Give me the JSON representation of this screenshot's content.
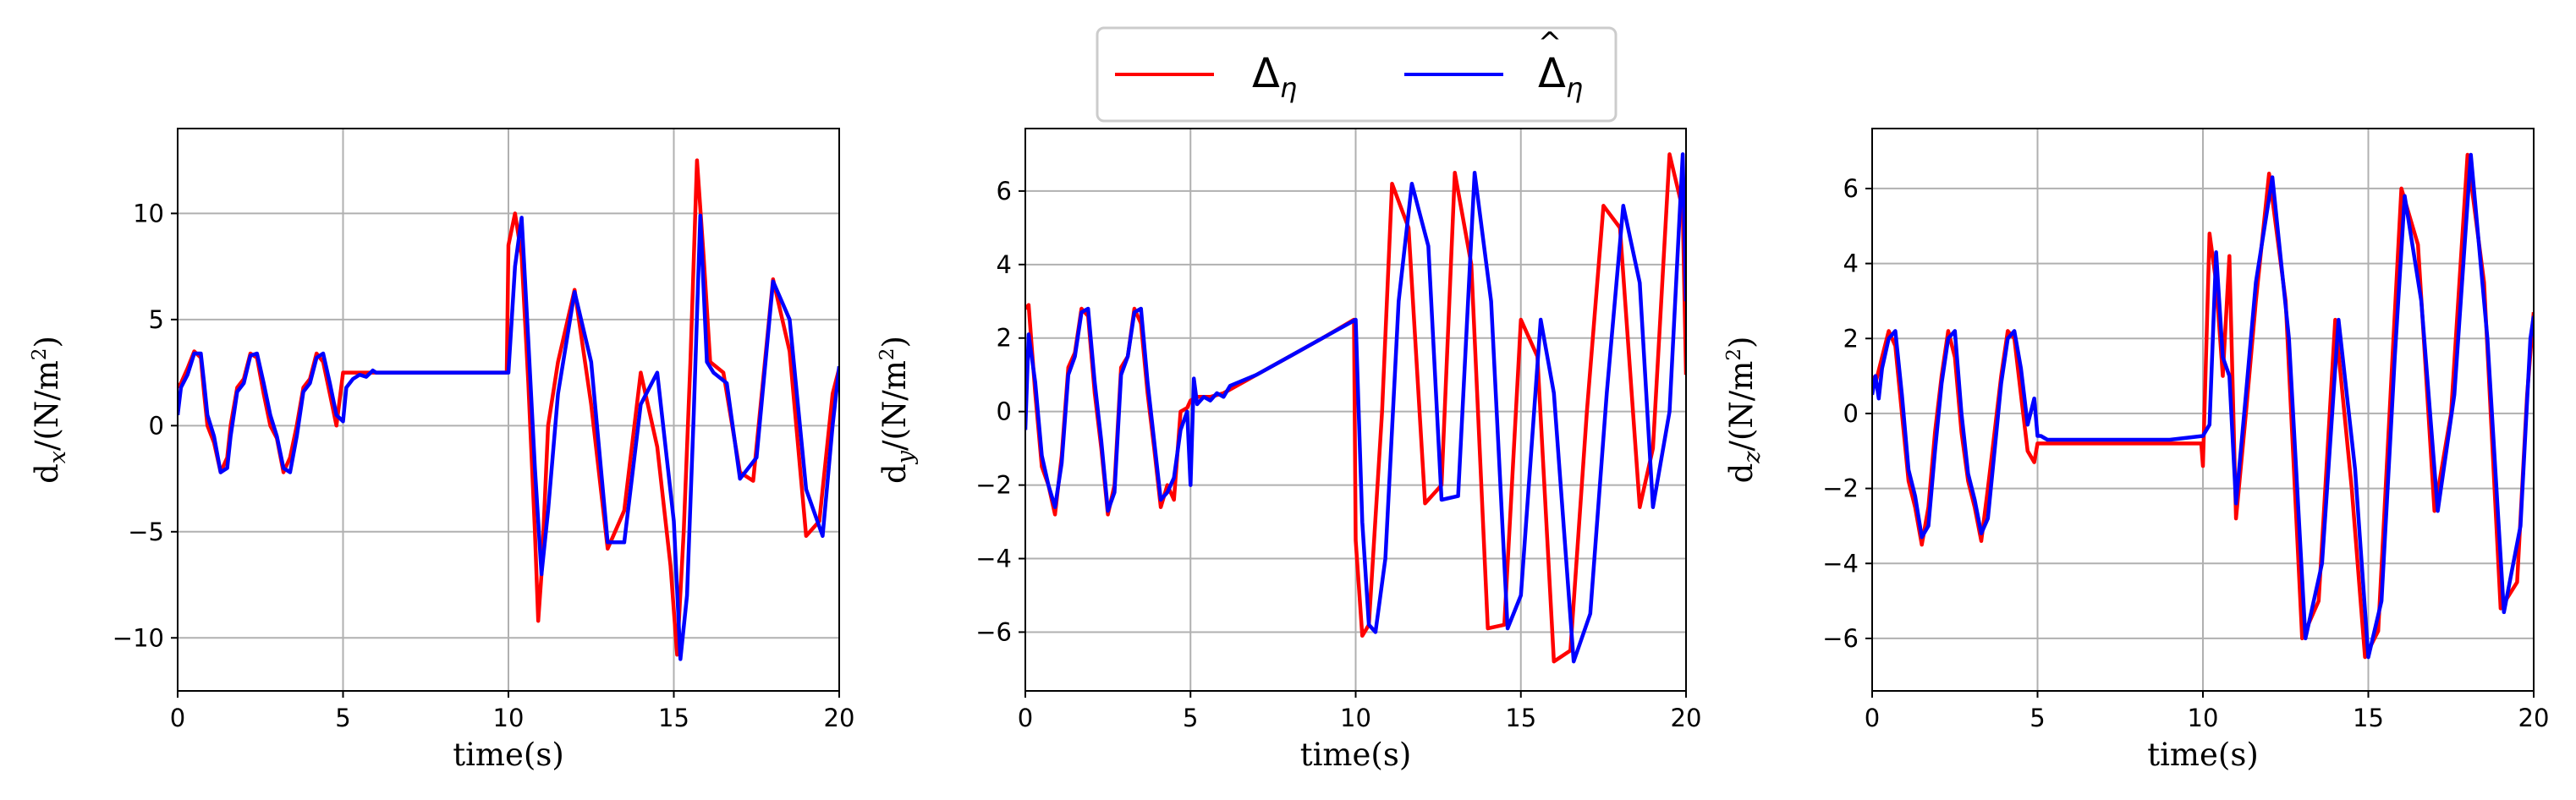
{
  "legend": {
    "entries": [
      {
        "symbol": "Δ",
        "subscript": "η",
        "hat": false,
        "color": "#ff0000"
      },
      {
        "symbol": "Δ",
        "subscript": "η",
        "hat": true,
        "color": "#0000ff"
      }
    ]
  },
  "chart_data": [
    {
      "type": "line",
      "xlabel": "time(s)",
      "ylabel": {
        "base": "d",
        "subscript": "x",
        "unit_open": "/(N/m",
        "unit_sup": "2",
        "unit_close": ")"
      },
      "xlim": [
        0,
        20
      ],
      "ylim": [
        -12.5,
        14
      ],
      "xticks": [
        0,
        5,
        10,
        15,
        20
      ],
      "xtick_labels": [
        "0",
        "5",
        "10",
        "15",
        "20"
      ],
      "yticks": [
        -10,
        -5,
        0,
        5,
        10
      ],
      "ytick_labels": [
        "−10",
        "−5",
        "0",
        "5",
        "10"
      ],
      "grid": true,
      "series": [
        {
          "color": "#ff0000",
          "x": [
            0,
            0.1,
            0.3,
            0.5,
            0.7,
            0.8,
            0.9,
            1.1,
            1.3,
            1.5,
            1.6,
            1.8,
            2.0,
            2.2,
            2.4,
            2.6,
            2.8,
            3.0,
            3.2,
            3.4,
            3.6,
            3.8,
            4.0,
            4.2,
            4.4,
            4.6,
            4.8,
            5.0,
            5.5,
            6,
            7,
            8,
            9,
            9.95,
            10.0,
            10.2,
            10.4,
            10.6,
            10.8,
            10.9,
            11.0,
            11.2,
            11.5,
            12.0,
            12.5,
            13.0,
            13.5,
            14.0,
            14.5,
            14.9,
            15.1,
            15.3,
            15.5,
            15.7,
            15.9,
            16.1,
            16.5,
            17.0,
            17.4,
            18.0,
            18.5,
            19.0,
            19.4,
            19.8,
            20.0
          ],
          "y": [
            1.8,
            2.0,
            2.7,
            3.5,
            3.2,
            1.5,
            0.0,
            -0.8,
            -2.2,
            -1.5,
            0.0,
            1.8,
            2.2,
            3.4,
            3.2,
            1.5,
            0.0,
            -0.6,
            -2.2,
            -1.5,
            0.0,
            1.8,
            2.2,
            3.4,
            3.0,
            1.5,
            0.0,
            2.5,
            2.5,
            2.5,
            2.5,
            2.5,
            2.5,
            2.5,
            8.5,
            10.0,
            8.0,
            2.0,
            -5.0,
            -9.2,
            -7.0,
            0.0,
            3.0,
            6.4,
            1.0,
            -5.8,
            -4.0,
            2.5,
            -1.0,
            -6.6,
            -10.8,
            -5.0,
            3.0,
            12.5,
            8.0,
            3.0,
            2.5,
            -2.2,
            -2.6,
            6.9,
            3.5,
            -5.2,
            -4.5,
            1.5,
            2.7
          ]
        },
        {
          "color": "#0000ff",
          "x": [
            0,
            0.1,
            0.3,
            0.5,
            0.7,
            0.8,
            0.9,
            1.1,
            1.3,
            1.5,
            1.6,
            1.8,
            2.0,
            2.2,
            2.4,
            2.6,
            2.8,
            3.0,
            3.2,
            3.4,
            3.6,
            3.8,
            4.0,
            4.2,
            4.4,
            4.6,
            4.8,
            5.0,
            5.1,
            5.3,
            5.5,
            5.7,
            5.9,
            6,
            6.1,
            7,
            8,
            9,
            10.0,
            10.2,
            10.4,
            10.6,
            10.8,
            11.0,
            11.2,
            11.5,
            12.0,
            12.5,
            13.0,
            13.5,
            14.0,
            14.5,
            15.0,
            15.2,
            15.4,
            15.6,
            15.8,
            16.0,
            16.2,
            16.6,
            17.0,
            17.5,
            18.0,
            18.5,
            19.0,
            19.5,
            19.8,
            20.0
          ],
          "y": [
            0.5,
            1.8,
            2.4,
            3.4,
            3.4,
            2.0,
            0.5,
            -0.5,
            -2.2,
            -2.0,
            -0.5,
            1.6,
            2.0,
            3.3,
            3.4,
            2.0,
            0.5,
            -0.5,
            -2.0,
            -2.2,
            -0.5,
            1.6,
            2.0,
            3.2,
            3.4,
            2.0,
            0.5,
            0.2,
            1.8,
            2.2,
            2.4,
            2.3,
            2.6,
            2.5,
            2.5,
            2.5,
            2.5,
            2.5,
            2.5,
            7.5,
            9.8,
            4.0,
            -2.0,
            -7.0,
            -4.0,
            1.5,
            6.3,
            3.0,
            -5.5,
            -5.5,
            1.0,
            2.5,
            -4.5,
            -11.0,
            -8.0,
            0.5,
            9.9,
            3.0,
            2.5,
            2.0,
            -2.5,
            -1.5,
            6.8,
            5.0,
            -3.0,
            -5.2,
            0.0,
            2.8
          ]
        }
      ]
    },
    {
      "type": "line",
      "xlabel": "time(s)",
      "ylabel": {
        "base": "d",
        "subscript": "y",
        "unit_open": "/(N/m",
        "unit_sup": "2",
        "unit_close": ")"
      },
      "xlim": [
        0,
        20
      ],
      "ylim": [
        -7.6,
        7.7
      ],
      "xticks": [
        0,
        5,
        10,
        15,
        20
      ],
      "xtick_labels": [
        "0",
        "5",
        "10",
        "15",
        "20"
      ],
      "yticks": [
        -6,
        -4,
        -2,
        0,
        2,
        4,
        6
      ],
      "ytick_labels": [
        "−6",
        "−4",
        "−2",
        "0",
        "2",
        "4",
        "6"
      ],
      "grid": true,
      "series": [
        {
          "color": "#ff0000",
          "x": [
            0,
            0.1,
            0.3,
            0.5,
            0.7,
            0.9,
            1.1,
            1.3,
            1.5,
            1.7,
            1.9,
            2.1,
            2.3,
            2.5,
            2.7,
            2.9,
            3.1,
            3.3,
            3.5,
            3.7,
            3.9,
            4.1,
            4.3,
            4.5,
            4.7,
            4.9,
            5.0,
            5.2,
            5.6,
            6,
            7,
            8,
            9,
            9.95,
            10.0,
            10.2,
            10.4,
            10.8,
            11.1,
            11.6,
            12.1,
            12.6,
            13.0,
            13.5,
            14.0,
            14.5,
            15.0,
            15.5,
            16.0,
            16.5,
            17.0,
            17.5,
            18.0,
            18.6,
            19.0,
            19.5,
            19.9,
            20.0
          ],
          "y": [
            2.8,
            2.9,
            0.5,
            -1.5,
            -2.0,
            -2.8,
            -1.2,
            1.2,
            1.6,
            2.8,
            2.6,
            0.5,
            -1.0,
            -2.8,
            -2.0,
            1.2,
            1.5,
            2.8,
            2.4,
            0.5,
            -1.0,
            -2.6,
            -2.0,
            -2.4,
            0.0,
            0.1,
            0.3,
            0.4,
            0.4,
            0.5,
            1.0,
            1.5,
            2.0,
            2.5,
            -3.5,
            -6.1,
            -5.8,
            0.0,
            6.2,
            5.0,
            -2.5,
            -2.0,
            6.5,
            4.0,
            -5.9,
            -5.8,
            2.5,
            1.5,
            -6.8,
            -6.5,
            0.0,
            5.6,
            5.0,
            -2.6,
            -1.0,
            7.0,
            5.5,
            1.0
          ]
        },
        {
          "color": "#0000ff",
          "x": [
            0,
            0.1,
            0.3,
            0.5,
            0.7,
            0.9,
            1.1,
            1.3,
            1.5,
            1.7,
            1.9,
            2.1,
            2.3,
            2.5,
            2.7,
            2.9,
            3.1,
            3.3,
            3.5,
            3.7,
            3.9,
            4.1,
            4.3,
            4.5,
            4.7,
            4.9,
            5.0,
            5.1,
            5.2,
            5.4,
            5.6,
            5.8,
            6.0,
            6.2,
            7,
            8,
            9,
            10.0,
            10.2,
            10.4,
            10.6,
            10.9,
            11.3,
            11.7,
            12.2,
            12.6,
            13.1,
            13.6,
            14.1,
            14.6,
            15.0,
            15.6,
            16.0,
            16.6,
            17.1,
            17.6,
            18.1,
            18.6,
            19.0,
            19.5,
            19.9,
            20.0
          ],
          "y": [
            -0.5,
            2.1,
            0.8,
            -1.2,
            -2.0,
            -2.6,
            -1.4,
            1.0,
            1.5,
            2.7,
            2.8,
            0.8,
            -0.8,
            -2.7,
            -2.2,
            1.0,
            1.5,
            2.7,
            2.8,
            0.8,
            -0.8,
            -2.4,
            -2.2,
            -1.8,
            -0.5,
            0.0,
            -2.0,
            0.9,
            0.2,
            0.4,
            0.3,
            0.5,
            0.4,
            0.7,
            1.0,
            1.5,
            2.0,
            2.5,
            -3.0,
            -5.8,
            -6.0,
            -4.0,
            3.0,
            6.2,
            4.5,
            -2.4,
            -2.3,
            6.5,
            3.0,
            -5.9,
            -5.0,
            2.5,
            0.5,
            -6.8,
            -5.5,
            0.5,
            5.6,
            3.5,
            -2.6,
            0.0,
            7.0,
            3.0
          ]
        }
      ]
    },
    {
      "type": "line",
      "xlabel": "time(s)",
      "ylabel": {
        "base": "d",
        "subscript": "z",
        "unit_open": "/(N/m",
        "unit_sup": "2",
        "unit_close": ")"
      },
      "xlim": [
        0,
        20
      ],
      "ylim": [
        -7.4,
        7.6
      ],
      "xticks": [
        0,
        5,
        10,
        15,
        20
      ],
      "xtick_labels": [
        "0",
        "5",
        "10",
        "15",
        "20"
      ],
      "yticks": [
        -6,
        -4,
        -2,
        0,
        2,
        4,
        6
      ],
      "ytick_labels": [
        "−6",
        "−4",
        "−2",
        "0",
        "2",
        "4",
        "6"
      ],
      "grid": true,
      "series": [
        {
          "color": "#ff0000",
          "x": [
            0,
            0.1,
            0.3,
            0.5,
            0.7,
            0.9,
            1.1,
            1.3,
            1.5,
            1.7,
            1.9,
            2.1,
            2.3,
            2.5,
            2.7,
            2.9,
            3.1,
            3.3,
            3.5,
            3.7,
            3.9,
            4.1,
            4.3,
            4.5,
            4.7,
            4.9,
            5.0,
            5.2,
            5.5,
            6,
            7,
            8,
            9,
            9.95,
            10.0,
            10.2,
            10.4,
            10.6,
            10.8,
            11.0,
            11.3,
            11.6,
            12.0,
            12.5,
            13.0,
            13.5,
            14.0,
            14.5,
            14.9,
            15.3,
            15.7,
            16.0,
            16.5,
            17.0,
            17.5,
            18.0,
            18.5,
            19.0,
            19.5,
            19.8,
            20.0
          ],
          "y": [
            1.0,
            0.8,
            1.5,
            2.2,
            1.8,
            0.0,
            -1.8,
            -2.5,
            -3.5,
            -2.5,
            -0.5,
            1.0,
            2.2,
            1.5,
            -0.5,
            -1.8,
            -2.5,
            -3.4,
            -2.0,
            -0.5,
            1.0,
            2.2,
            2.0,
            0.5,
            -1.0,
            -1.3,
            -0.8,
            -0.8,
            -0.8,
            -0.8,
            -0.8,
            -0.8,
            -0.8,
            -0.8,
            -1.4,
            4.8,
            3.5,
            1.0,
            4.2,
            -2.8,
            0.0,
            3.0,
            6.4,
            3.0,
            -6.0,
            -5.0,
            2.5,
            -2.0,
            -6.5,
            -5.8,
            1.0,
            6.0,
            4.5,
            -2.6,
            0.0,
            6.9,
            3.5,
            -5.2,
            -4.5,
            0.5,
            2.7
          ]
        },
        {
          "color": "#0000ff",
          "x": [
            0,
            0.1,
            0.2,
            0.3,
            0.5,
            0.7,
            0.9,
            1.1,
            1.3,
            1.5,
            1.7,
            1.9,
            2.1,
            2.3,
            2.5,
            2.7,
            2.9,
            3.1,
            3.3,
            3.5,
            3.7,
            3.9,
            4.1,
            4.3,
            4.5,
            4.7,
            4.9,
            5.0,
            5.1,
            5.3,
            5.5,
            6,
            7,
            8,
            9,
            10.0,
            10.2,
            10.4,
            10.6,
            10.8,
            11.0,
            11.3,
            11.6,
            12.1,
            12.6,
            13.1,
            13.6,
            14.1,
            14.6,
            15.0,
            15.4,
            15.8,
            16.1,
            16.6,
            17.1,
            17.6,
            18.1,
            18.6,
            19.1,
            19.6,
            19.9,
            20.0
          ],
          "y": [
            0.5,
            1.0,
            0.4,
            1.2,
            2.0,
            2.2,
            0.5,
            -1.5,
            -2.2,
            -3.3,
            -3.0,
            -1.0,
            0.8,
            2.0,
            2.2,
            0.0,
            -1.6,
            -2.3,
            -3.2,
            -2.8,
            -1.0,
            0.8,
            2.0,
            2.2,
            1.2,
            -0.3,
            0.4,
            -0.6,
            -0.6,
            -0.7,
            -0.7,
            -0.7,
            -0.7,
            -0.7,
            -0.7,
            -0.6,
            -0.3,
            4.3,
            1.5,
            1.0,
            -2.4,
            0.5,
            3.5,
            6.3,
            2.0,
            -6.0,
            -4.0,
            2.5,
            -1.5,
            -6.5,
            -5.0,
            1.5,
            5.8,
            3.0,
            -2.6,
            0.5,
            6.9,
            2.0,
            -5.3,
            -3.0,
            2.0,
            2.6
          ]
        }
      ]
    }
  ]
}
